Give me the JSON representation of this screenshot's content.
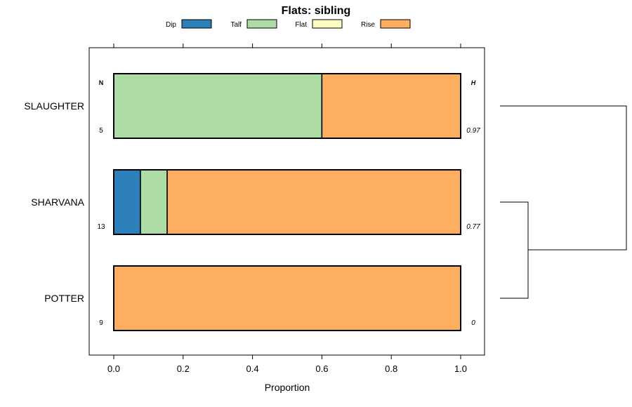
{
  "chart_data": {
    "type": "bar",
    "orientation": "horizontal",
    "stacked": true,
    "title": "Flats: sibling",
    "xlabel": "Proportion",
    "xlim": [
      -0.07,
      1.07
    ],
    "x_ticks": [
      0.0,
      0.2,
      0.4,
      0.6,
      0.8,
      1.0
    ],
    "x_tick_labels": [
      "0.0",
      "0.2",
      "0.4",
      "0.6",
      "0.8",
      "1.0"
    ],
    "legend_position": "top",
    "legend": [
      {
        "name": "Dip",
        "color": "#2c7fb8"
      },
      {
        "name": "Talf",
        "color": "#addda5"
      },
      {
        "name": "Flat",
        "color": "#ffffc4"
      },
      {
        "name": "Rise",
        "color": "#fdae61"
      }
    ],
    "categories": [
      "SLAUGHTER",
      "SHARVANA",
      "POTTER"
    ],
    "series": [
      {
        "name": "Dip",
        "values": [
          0.0,
          0.077,
          0.0
        ]
      },
      {
        "name": "Talf",
        "values": [
          0.6,
          0.077,
          0.0
        ]
      },
      {
        "name": "Flat",
        "values": [
          0.0,
          0.0,
          0.0
        ]
      },
      {
        "name": "Rise",
        "values": [
          0.4,
          0.846,
          1.0
        ]
      }
    ],
    "n_header": "N",
    "h_header": "H",
    "n_values": [
      "5",
      "13",
      "9"
    ],
    "h_values": [
      "0.97",
      "0.77",
      "0"
    ],
    "dendrogram": "POTTER and SHARVANA join first; SLAUGHTER joins that cluster"
  }
}
